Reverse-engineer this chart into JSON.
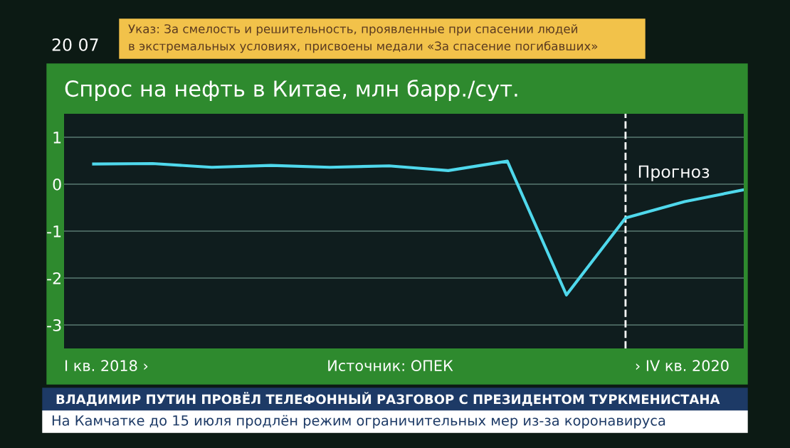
{
  "chart_data": {
    "type": "line",
    "title": "Спрос на нефть в Китае, млн барр./сут.",
    "categories": [
      null,
      null,
      null,
      null,
      null,
      null,
      null,
      null,
      null,
      null,
      null,
      null
    ],
    "series": [
      {
        "color": "#4fd8ec",
        "values": [
          0.43,
          0.44,
          0.36,
          0.4,
          0.36,
          0.39,
          0.29,
          0.49,
          -2.36,
          -0.72,
          -0.37,
          -0.12
        ]
      }
    ],
    "ylim": [
      -3.5,
      1.5
    ],
    "yticks": [
      -3,
      -2,
      -1,
      0,
      1
    ],
    "grid": "y",
    "tick_labels": "y",
    "annotations": [
      "Прогноз",
      "I кв. 2018 ›",
      "Источник: ОПЕК",
      "› IV кв. 2020",
      "20 07",
      "Указ: За смелость и решительность, проявленные при спасении людей",
      "в экстремальных условиях, присвоены медали «За спасение погибавших»",
      "ВЛАДИМИР ПУТИН ПРОВЁЛ ТЕЛЕФОННЫЙ РАЗГОВОР С ПРЕЗИДЕНТОМ ТУРКМЕНИСТАНА",
      "На Камчатке до 15 июля продлён режим ограничительных мер из-за коронавируса"
    ]
  }
}
